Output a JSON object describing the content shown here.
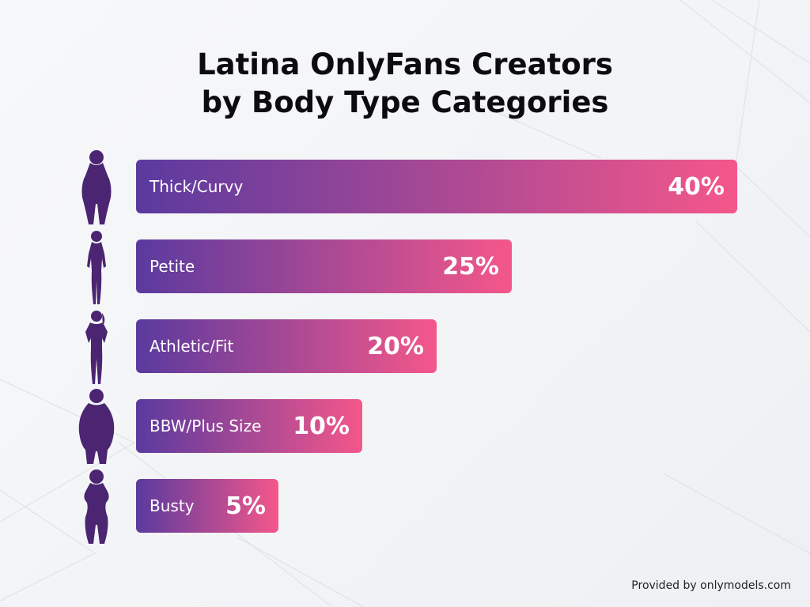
{
  "chart_data": {
    "type": "bar",
    "orientation": "horizontal",
    "title": "Latina OnlyFans Creators by Body Type Categories",
    "title_lines": [
      "Latina OnlyFans Creators",
      "by Body Type Categories"
    ],
    "categories": [
      "Thick/Curvy",
      "Petite",
      "Athletic/Fit",
      "BBW/Plus Size",
      "Busty"
    ],
    "values": [
      40,
      25,
      20,
      10,
      5
    ],
    "value_labels": [
      "40%",
      "25%",
      "20%",
      "10%",
      "5%"
    ],
    "icons": [
      "curvy-woman-silhouette-icon",
      "petite-woman-silhouette-icon",
      "athletic-woman-silhouette-icon",
      "plus-size-woman-silhouette-icon",
      "busty-woman-silhouette-icon"
    ],
    "colors": {
      "gradient_start": "#5a3a9f",
      "gradient_end": "#f4578a",
      "silhouette": "#4b2571"
    }
  },
  "footer": "Provided by onlymodels.com"
}
